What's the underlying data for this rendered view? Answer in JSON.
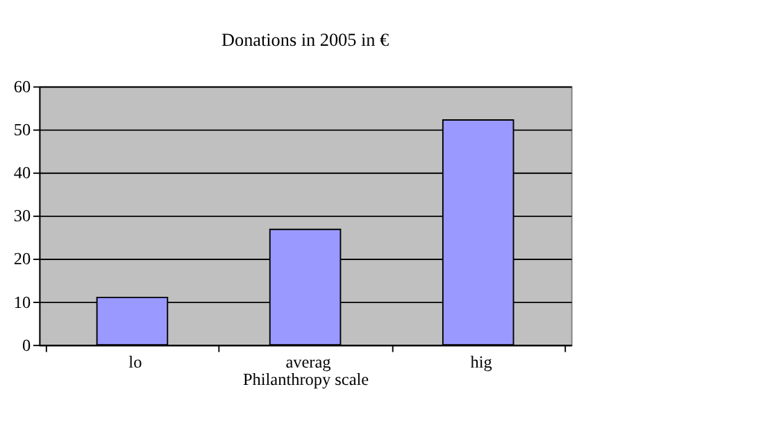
{
  "chart_data": {
    "type": "bar",
    "title": "Donations in 2005 in €",
    "xlabel": "Philanthropy        scale",
    "categories": [
      "lo",
      "averag",
      "hig"
    ],
    "values": [
      11,
      26.8,
      52.2
    ],
    "color": "#9999ff",
    "ylim": [
      0,
      60
    ],
    "yticks": [
      0,
      10,
      20,
      30,
      40,
      50,
      60
    ],
    "grid": "y"
  }
}
